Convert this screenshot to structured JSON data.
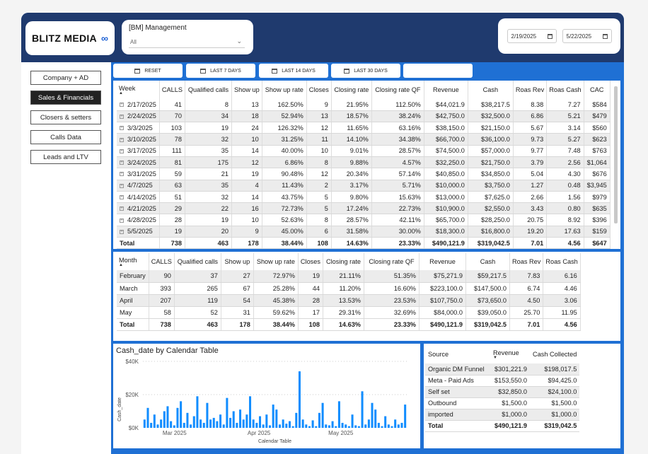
{
  "brand": {
    "name": "BLITZ MEDIA",
    "icon": "meta-infinity-icon",
    "color": "#1f70d4",
    "header_color": "#1f3a6e"
  },
  "management": {
    "title": "[BM] Management",
    "value": "All"
  },
  "dates": {
    "start": "2/19/2025",
    "end": "5/22/2025"
  },
  "nav": [
    "Company + AD",
    "Sales & Financials",
    "Closers & setters",
    "Calls Data",
    "Leads and LTV"
  ],
  "nav_active": "Sales & Financials",
  "buttons": {
    "reset": "RESET",
    "last7": "LAST 7 DAYS",
    "last14": "LAST 14 DAYS",
    "last30": "LAST 30 DAYS",
    "blank": ""
  },
  "weekly": {
    "headers": [
      "Week",
      "CALLS",
      "Qualified calls",
      "Show up",
      "Show up rate",
      "Closes",
      "Closing rate",
      "Closing rate QF",
      "Revenue",
      "Cash",
      "Roas Rev",
      "Roas Cash",
      "CAC"
    ],
    "rows": [
      [
        "2/17/2025",
        "41",
        "8",
        "13",
        "162.50%",
        "9",
        "21.95%",
        "112.50%",
        "$44,021.9",
        "$38,217.5",
        "8.38",
        "7.27",
        "$584"
      ],
      [
        "2/24/2025",
        "70",
        "34",
        "18",
        "52.94%",
        "13",
        "18.57%",
        "38.24%",
        "$42,750.0",
        "$32,500.0",
        "6.86",
        "5.21",
        "$479"
      ],
      [
        "3/3/2025",
        "103",
        "19",
        "24",
        "126.32%",
        "12",
        "11.65%",
        "63.16%",
        "$38,150.0",
        "$21,150.0",
        "5.67",
        "3.14",
        "$560"
      ],
      [
        "3/10/2025",
        "78",
        "32",
        "10",
        "31.25%",
        "11",
        "14.10%",
        "34.38%",
        "$66,700.0",
        "$36,100.0",
        "9.73",
        "5.27",
        "$623"
      ],
      [
        "3/17/2025",
        "111",
        "35",
        "14",
        "40.00%",
        "10",
        "9.01%",
        "28.57%",
        "$74,500.0",
        "$57,000.0",
        "9.77",
        "7.48",
        "$763"
      ],
      [
        "3/24/2025",
        "81",
        "175",
        "12",
        "6.86%",
        "8",
        "9.88%",
        "4.57%",
        "$32,250.0",
        "$21,750.0",
        "3.79",
        "2.56",
        "$1,064"
      ],
      [
        "3/31/2025",
        "59",
        "21",
        "19",
        "90.48%",
        "12",
        "20.34%",
        "57.14%",
        "$40,850.0",
        "$34,850.0",
        "5.04",
        "4.30",
        "$676"
      ],
      [
        "4/7/2025",
        "63",
        "35",
        "4",
        "11.43%",
        "2",
        "3.17%",
        "5.71%",
        "$10,000.0",
        "$3,750.0",
        "1.27",
        "0.48",
        "$3,945"
      ],
      [
        "4/14/2025",
        "51",
        "32",
        "14",
        "43.75%",
        "5",
        "9.80%",
        "15.63%",
        "$13,000.0",
        "$7,625.0",
        "2.66",
        "1.56",
        "$979"
      ],
      [
        "4/21/2025",
        "29",
        "22",
        "16",
        "72.73%",
        "5",
        "17.24%",
        "22.73%",
        "$10,900.0",
        "$2,550.0",
        "3.43",
        "0.80",
        "$635"
      ],
      [
        "4/28/2025",
        "28",
        "19",
        "10",
        "52.63%",
        "8",
        "28.57%",
        "42.11%",
        "$65,700.0",
        "$28,250.0",
        "20.75",
        "8.92",
        "$396"
      ],
      [
        "5/5/2025",
        "19",
        "20",
        "9",
        "45.00%",
        "6",
        "31.58%",
        "30.00%",
        "$18,300.0",
        "$16,800.0",
        "19.20",
        "17.63",
        "$159"
      ]
    ],
    "total": [
      "Total",
      "738",
      "463",
      "178",
      "38.44%",
      "108",
      "14.63%",
      "23.33%",
      "$490,121.9",
      "$319,042.5",
      "7.01",
      "4.56",
      "$647"
    ]
  },
  "monthly": {
    "headers": [
      "Month",
      "CALLS",
      "Qualified calls",
      "Show up",
      "Show up rate",
      "Closes",
      "Closing rate",
      "Closing rate QF",
      "Revenue",
      "Cash",
      "Roas Rev",
      "Roas Cash"
    ],
    "rows": [
      [
        "February",
        "90",
        "37",
        "27",
        "72.97%",
        "19",
        "21.11%",
        "51.35%",
        "$75,271.9",
        "$59,217.5",
        "7.83",
        "6.16"
      ],
      [
        "March",
        "393",
        "265",
        "67",
        "25.28%",
        "44",
        "11.20%",
        "16.60%",
        "$223,100.0",
        "$147,500.0",
        "6.74",
        "4.46"
      ],
      [
        "April",
        "207",
        "119",
        "54",
        "45.38%",
        "28",
        "13.53%",
        "23.53%",
        "$107,750.0",
        "$73,650.0",
        "4.50",
        "3.06"
      ],
      [
        "May",
        "58",
        "52",
        "31",
        "59.62%",
        "17",
        "29.31%",
        "32.69%",
        "$84,000.0",
        "$39,050.0",
        "25.70",
        "11.95"
      ]
    ],
    "total": [
      "Total",
      "738",
      "463",
      "178",
      "38.44%",
      "108",
      "14.63%",
      "23.33%",
      "$490,121.9",
      "$319,042.5",
      "7.01",
      "4.56"
    ]
  },
  "source_table": {
    "headers": [
      "Source",
      "Revenue",
      "Cash Collected"
    ],
    "rows": [
      [
        "Organic DM Funnel",
        "$301,221.9",
        "$198,017.5"
      ],
      [
        "Meta - Paid Ads",
        "$153,550.0",
        "$94,425.0"
      ],
      [
        "Self set",
        "$32,850.0",
        "$24,100.0"
      ],
      [
        "Outbound",
        "$1,500.0",
        "$1,500.0"
      ],
      [
        "imported",
        "$1,000.0",
        "$1,000.0"
      ]
    ],
    "total": [
      "Total",
      "$490,121.9",
      "$319,042.5"
    ]
  },
  "chart_data": {
    "type": "bar",
    "title": "Cash_date by Calendar Table",
    "xlabel": "Calendar Table",
    "ylabel": "Cash_date",
    "ylim": [
      0,
      40000
    ],
    "yticks": [
      "$0K",
      "$20K",
      "$40K"
    ],
    "xticks": [
      "Mar 2025",
      "Apr 2025",
      "May 2025"
    ],
    "bar_color": "#118dff",
    "values": [
      5000,
      12000,
      3000,
      8000,
      2000,
      5000,
      10000,
      13000,
      4000,
      1500,
      12000,
      16000,
      3000,
      9000,
      2000,
      7000,
      19000,
      5000,
      3000,
      15000,
      5000,
      6000,
      4000,
      8000,
      2000,
      18000,
      6000,
      10000,
      3000,
      11000,
      5000,
      8000,
      19000,
      5000,
      3000,
      7000,
      2000,
      8000,
      1500,
      14000,
      11000,
      2000,
      5000,
      2500,
      4000,
      1000,
      9000,
      34000,
      5000,
      2000,
      1000,
      4500,
      1000,
      9000,
      15000,
      2000,
      1500,
      4000,
      1000,
      16000,
      3000,
      2000,
      1000,
      8000,
      1500,
      1000,
      22000,
      2000,
      5000,
      15000,
      11000,
      3000,
      1000,
      7000,
      2000,
      1000,
      5000,
      2000,
      3000,
      14000
    ]
  }
}
